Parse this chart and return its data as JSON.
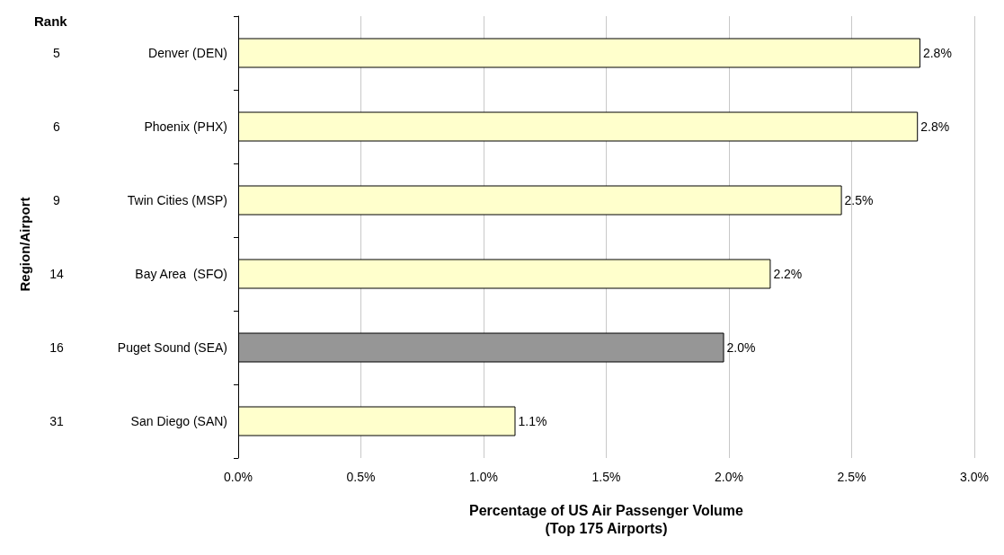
{
  "chart_data": {
    "type": "bar",
    "orientation": "horizontal",
    "categories": [
      "Denver (DEN)",
      "Phoenix (PHX)",
      "Twin Cities (MSP)",
      "Bay Area  (SFO)",
      "Puget Sound (SEA)",
      "San Diego (SAN)"
    ],
    "values": [
      2.78,
      2.77,
      2.46,
      2.17,
      1.98,
      1.13
    ],
    "value_labels": [
      "2.8%",
      "2.8%",
      "2.5%",
      "2.2%",
      "2.0%",
      "1.1%"
    ],
    "colors": [
      "#ffffcc",
      "#ffffcc",
      "#ffffcc",
      "#ffffcc",
      "#969696",
      "#ffffcc"
    ],
    "xlim": [
      0,
      3
    ],
    "xticks": [
      {
        "value": 0,
        "label": "0.0%"
      },
      {
        "value": 0.5,
        "label": "0.5%"
      },
      {
        "value": 1,
        "label": "1.0%"
      },
      {
        "value": 1.5,
        "label": "1.5%"
      },
      {
        "value": 2,
        "label": "2.0%"
      },
      {
        "value": 2.5,
        "label": "2.5%"
      },
      {
        "value": 3,
        "label": "3.0%"
      }
    ],
    "xlabel": "Percentage of US Air Passenger Volume\n(Top 175 Airports)",
    "annotations": [
      "Rank",
      "Region/Airport",
      "5",
      "6",
      "9",
      "14",
      "16",
      "31"
    ],
    "grid": "x"
  }
}
